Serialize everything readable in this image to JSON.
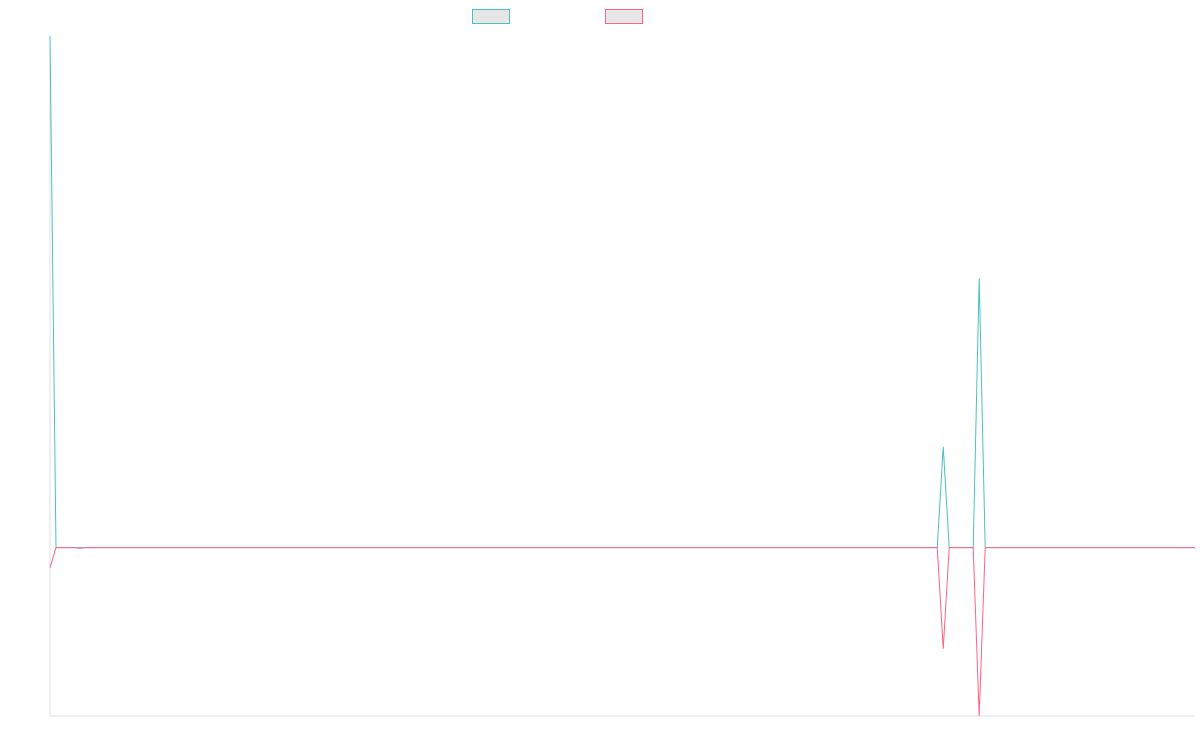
{
  "chart_data": {
    "type": "line",
    "series": [
      {
        "name": "",
        "color": "#4bc0c0",
        "values": [
          1.52,
          0,
          0,
          0,
          0,
          0,
          0,
          0,
          0,
          0,
          0,
          0,
          0,
          0,
          0,
          0,
          0,
          0,
          0,
          0,
          0,
          0,
          0,
          0,
          0,
          0,
          0,
          0,
          0,
          0,
          0,
          0,
          0,
          0,
          0,
          0,
          0,
          0,
          0,
          0,
          0,
          0,
          0,
          0,
          0,
          0,
          0,
          0,
          0,
          0,
          0,
          0,
          0,
          0,
          0,
          0,
          0,
          0,
          0,
          0,
          0,
          0,
          0,
          0,
          0,
          0,
          0,
          0,
          0,
          0,
          0,
          0,
          0,
          0,
          0,
          0,
          0,
          0,
          0,
          0,
          0,
          0,
          0,
          0,
          0,
          0,
          0,
          0,
          0,
          0,
          0,
          0,
          0,
          0,
          0,
          0,
          0,
          0,
          0,
          0,
          0,
          0,
          0,
          0,
          0,
          0,
          0,
          0,
          0,
          0,
          0,
          0,
          0,
          0,
          0,
          0,
          0,
          0,
          0,
          0,
          0,
          0,
          0,
          0,
          0,
          0,
          0,
          0,
          0,
          0,
          0,
          0,
          0,
          0,
          0,
          0,
          0,
          0,
          0,
          0,
          0,
          0,
          0,
          0,
          0,
          0,
          0,
          0,
          0,
          0.3,
          0,
          0,
          0,
          0,
          0,
          0.8,
          0,
          0,
          0,
          0,
          0,
          0,
          0,
          0,
          0,
          0,
          0,
          0,
          0,
          0,
          0,
          0,
          0,
          0,
          0,
          0,
          0,
          0,
          0,
          0,
          0,
          0,
          0,
          0,
          0,
          0,
          0,
          0,
          0,
          0,
          0,
          0
        ]
      },
      {
        "name": "",
        "color": "#ff6384",
        "values": [
          -0.06,
          0,
          0,
          0,
          0,
          -0.002,
          0,
          0,
          0,
          0,
          0,
          0,
          0,
          0,
          0,
          0,
          0,
          0,
          0,
          0,
          0,
          0,
          0,
          0,
          0,
          0,
          0,
          0,
          0,
          0,
          0,
          0,
          0,
          0,
          0,
          0,
          0,
          0,
          0,
          0,
          0,
          0,
          0,
          0,
          0,
          0,
          0,
          0,
          0,
          0,
          0,
          0,
          0,
          0,
          0,
          0,
          0,
          0,
          0,
          0,
          0,
          0,
          0,
          0,
          0,
          0,
          0,
          0,
          0,
          0,
          0,
          0,
          0,
          0,
          0,
          0,
          0,
          0,
          0,
          0,
          0,
          0,
          0,
          0,
          0,
          0,
          0,
          0,
          0,
          0,
          0,
          0,
          0,
          0,
          0,
          0,
          0,
          0,
          0,
          0,
          0,
          0,
          0,
          0,
          0,
          0,
          0,
          0,
          0,
          0,
          0,
          0,
          0,
          0,
          0,
          0,
          0,
          0,
          0,
          0,
          0,
          0,
          0,
          0,
          0,
          0,
          0,
          0,
          0,
          0,
          0,
          0,
          0,
          0,
          0,
          0,
          0,
          0,
          0,
          0,
          0,
          0,
          0,
          0,
          0,
          0,
          0,
          0,
          0,
          -0.3,
          0,
          0,
          0,
          0,
          0,
          -0.5,
          0,
          0,
          0,
          0,
          0,
          0,
          0,
          0,
          0,
          0,
          0,
          0,
          0,
          0,
          0,
          0,
          0,
          0,
          0,
          0,
          0,
          0,
          0,
          0,
          0,
          0,
          0,
          0,
          0,
          0,
          0,
          0,
          0,
          0,
          0,
          0
        ]
      }
    ],
    "ylim": [
      -0.5,
      1.52
    ],
    "grid": false,
    "legend": "top-center"
  }
}
